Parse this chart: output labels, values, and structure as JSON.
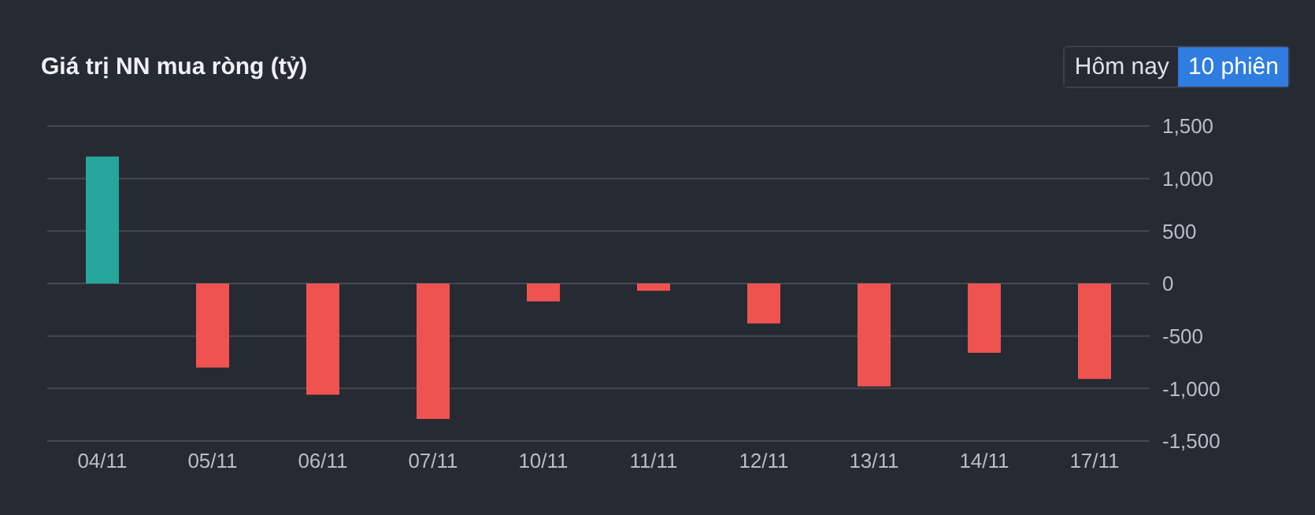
{
  "chart_data": {
    "type": "bar",
    "title": "Giá trị NN mua ròng (tỷ)",
    "annotations": [
      "Hôm nay",
      "10 phiên"
    ],
    "categories": [
      "04/11",
      "05/11",
      "06/11",
      "07/11",
      "10/11",
      "11/11",
      "12/11",
      "13/11",
      "14/11",
      "17/11"
    ],
    "values": [
      1210,
      -800,
      -1060,
      -1290,
      -170,
      -70,
      -380,
      -980,
      -660,
      -910
    ],
    "colors": [
      "#26a69a",
      "#ef5350",
      "#ef5350",
      "#ef5350",
      "#ef5350",
      "#ef5350",
      "#ef5350",
      "#ef5350",
      "#ef5350",
      "#ef5350"
    ],
    "ylim": [
      -1500,
      1500
    ],
    "yticks": [
      {
        "value": -1500,
        "label": "-1,500"
      },
      {
        "value": -1000,
        "label": "-1,000"
      },
      -500,
      0,
      500,
      {
        "value": 1000,
        "label": "1,000"
      },
      {
        "value": 1500,
        "label": "1,500"
      }
    ],
    "grid": "y"
  }
}
